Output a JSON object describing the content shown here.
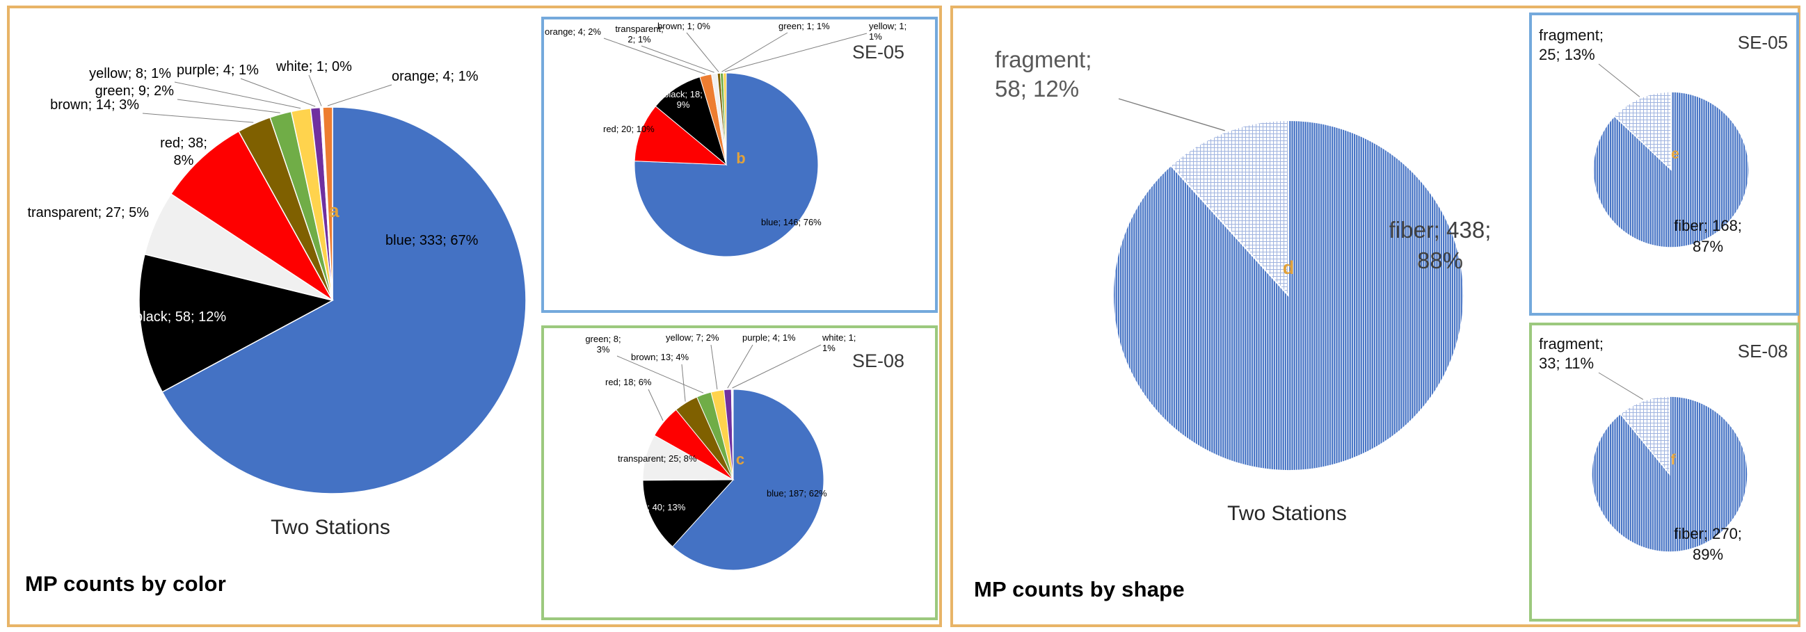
{
  "figure": {
    "panels": [
      {
        "caption": "MP counts by color",
        "main_title": "Two Stations",
        "insets": [
          "SE-05",
          "SE-08"
        ]
      },
      {
        "caption": "MP counts by shape",
        "main_title": "Two Stations",
        "insets": [
          "SE-05",
          "SE-08"
        ]
      }
    ]
  },
  "colors": {
    "panel_border": "#e8b467",
    "inset_blue_border": "#74a9dc",
    "inset_green_border": "#9cc97e",
    "marker": "#e2a23b",
    "leader": "#7f7f7f",
    "title_text": "#262626",
    "station_text": "#383838",
    "fiber_stripe": "#4472c4",
    "fragment_grid": "#9fb3df",
    "slice": {
      "blue": "#4472c4",
      "black": "#000000",
      "transparent": "#f0f0f0",
      "red": "#fe0000",
      "brown": "#7f6000",
      "green": "#70ad47",
      "yellow": "#ffd34d",
      "purple": "#7030a0",
      "white": "#ffffff",
      "orange": "#ed7d31"
    }
  },
  "chart_data": [
    {
      "id": "a",
      "type": "pie",
      "panel": "MP counts by color",
      "title": "Two Stations",
      "marker": "a",
      "slices": [
        {
          "label": "blue",
          "value": 333,
          "pct": 67
        },
        {
          "label": "black",
          "value": 58,
          "pct": 12
        },
        {
          "label": "transparent",
          "value": 27,
          "pct": 5
        },
        {
          "label": "red",
          "value": 38,
          "pct": 8
        },
        {
          "label": "brown",
          "value": 14,
          "pct": 3
        },
        {
          "label": "green",
          "value": 9,
          "pct": 2
        },
        {
          "label": "yellow",
          "value": 8,
          "pct": 1
        },
        {
          "label": "purple",
          "value": 4,
          "pct": 1
        },
        {
          "label": "white",
          "value": 1,
          "pct": 0
        },
        {
          "label": "orange",
          "value": 4,
          "pct": 1
        }
      ]
    },
    {
      "id": "b",
      "type": "pie",
      "panel": "MP counts by color",
      "station": "SE-05",
      "marker": "b",
      "slices": [
        {
          "label": "blue",
          "value": 146,
          "pct": 76
        },
        {
          "label": "red",
          "value": 20,
          "pct": 10
        },
        {
          "label": "black",
          "value": 18,
          "pct": 9
        },
        {
          "label": "orange",
          "value": 4,
          "pct": 2
        },
        {
          "label": "transparent",
          "value": 2,
          "pct": 1
        },
        {
          "label": "brown",
          "value": 1,
          "pct": 0
        },
        {
          "label": "green",
          "value": 1,
          "pct": 1
        },
        {
          "label": "yellow",
          "value": 1,
          "pct": 1
        }
      ]
    },
    {
      "id": "c",
      "type": "pie",
      "panel": "MP counts by color",
      "station": "SE-08",
      "marker": "c",
      "slices": [
        {
          "label": "blue",
          "value": 187,
          "pct": 62
        },
        {
          "label": "black",
          "value": 40,
          "pct": 13
        },
        {
          "label": "transparent",
          "value": 25,
          "pct": 8
        },
        {
          "label": "red",
          "value": 18,
          "pct": 6
        },
        {
          "label": "brown",
          "value": 13,
          "pct": 4
        },
        {
          "label": "green",
          "value": 8,
          "pct": 3
        },
        {
          "label": "yellow",
          "value": 7,
          "pct": 2
        },
        {
          "label": "purple",
          "value": 4,
          "pct": 1
        },
        {
          "label": "white",
          "value": 1,
          "pct": 1
        }
      ]
    },
    {
      "id": "d",
      "type": "pie",
      "panel": "MP counts by shape",
      "title": "Two Stations",
      "marker": "d",
      "slices": [
        {
          "label": "fiber",
          "value": 438,
          "pct": 88,
          "fill": "fiber-pattern"
        },
        {
          "label": "fragment",
          "value": 58,
          "pct": 12,
          "fill": "fragment-pattern"
        }
      ]
    },
    {
      "id": "e",
      "type": "pie",
      "panel": "MP counts by shape",
      "station": "SE-05",
      "marker": "e",
      "slices": [
        {
          "label": "fiber",
          "value": 168,
          "pct": 87,
          "fill": "fiber-pattern"
        },
        {
          "label": "fragment",
          "value": 25,
          "pct": 13,
          "fill": "fragment-pattern"
        }
      ]
    },
    {
      "id": "f",
      "type": "pie",
      "panel": "MP counts by shape",
      "station": "SE-08",
      "marker": "f",
      "slices": [
        {
          "label": "fiber",
          "value": 270,
          "pct": 89,
          "fill": "fiber-pattern"
        },
        {
          "label": "fragment",
          "value": 33,
          "pct": 11,
          "fill": "fragment-pattern"
        }
      ]
    }
  ]
}
